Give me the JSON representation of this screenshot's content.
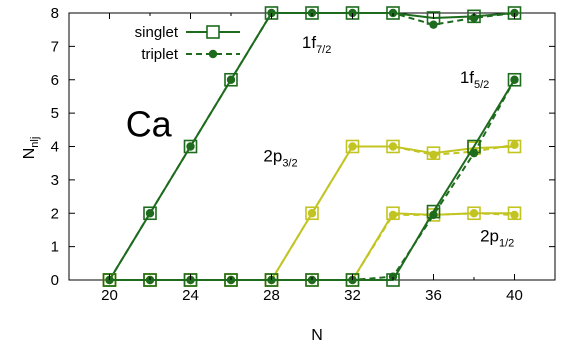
{
  "chart_data": {
    "type": "line",
    "xlabel": "N",
    "ylabel_main": "N",
    "ylabel_sub": "nlj",
    "xlim": [
      18,
      42
    ],
    "ylim": [
      0,
      8
    ],
    "xticks": [
      "20",
      "24",
      "28",
      "32",
      "36",
      "40"
    ],
    "yticks": [
      "0",
      "1",
      "2",
      "3",
      "4",
      "5",
      "6",
      "7",
      "8"
    ],
    "grid": false,
    "legend_position": "top-left",
    "legend": [
      {
        "label": "singlet",
        "style": "solid",
        "marker": "open-square"
      },
      {
        "label": "triplet",
        "style": "dashed",
        "marker": "filled-circle"
      }
    ],
    "x": [
      20,
      22,
      24,
      26,
      28,
      30,
      32,
      34,
      36,
      38,
      40
    ],
    "series": [
      {
        "orbital": "1f7/2",
        "kind": "singlet",
        "color": "#1e6b1e",
        "values": [
          0,
          2,
          4,
          6,
          8,
          8,
          8,
          8,
          7.85,
          7.9,
          8
        ]
      },
      {
        "orbital": "1f7/2",
        "kind": "triplet",
        "color": "#1e6b1e",
        "values": [
          0,
          2,
          4,
          6,
          8,
          8,
          8,
          8,
          7.65,
          7.85,
          8
        ]
      },
      {
        "orbital": "2p3/2",
        "kind": "singlet",
        "color": "#c2c422",
        "values": [
          0,
          0,
          0,
          0,
          0,
          2,
          4,
          4,
          3.8,
          3.95,
          4
        ]
      },
      {
        "orbital": "2p3/2",
        "kind": "triplet",
        "color": "#c2c422",
        "values": [
          0,
          0,
          0,
          0,
          0,
          2,
          4,
          4,
          3.75,
          3.85,
          4.05
        ]
      },
      {
        "orbital": "2p1/2",
        "kind": "singlet",
        "color": "#c2c422",
        "values": [
          0,
          0,
          0,
          0,
          0,
          0,
          0,
          2,
          1.95,
          2,
          2
        ]
      },
      {
        "orbital": "2p1/2",
        "kind": "triplet",
        "color": "#c2c422",
        "values": [
          0,
          0,
          0,
          0,
          0,
          0,
          0,
          1.95,
          1.95,
          2,
          1.95
        ]
      },
      {
        "orbital": "1f5/2",
        "kind": "singlet",
        "color": "#1e6b1e",
        "values": [
          0,
          0,
          0,
          0,
          0,
          0,
          0,
          0,
          2.05,
          4,
          6
        ]
      },
      {
        "orbital": "1f5/2",
        "kind": "triplet",
        "color": "#1e6b1e",
        "values": [
          0,
          0,
          0,
          0,
          0,
          0,
          0,
          0.1,
          1.95,
          3.8,
          6
        ]
      }
    ],
    "annotations": [
      {
        "main": "1f",
        "sub": "7/2",
        "x": 29.5,
        "y": 6.95
      },
      {
        "main": "1f",
        "sub": "5/2",
        "x": 37.3,
        "y": 5.9
      },
      {
        "main": "2p",
        "sub": "3/2",
        "x": 27.6,
        "y": 3.55
      },
      {
        "main": "2p",
        "sub": "1/2",
        "x": 38.3,
        "y": 1.15
      }
    ],
    "element_label": "Ca",
    "element_label_pos": {
      "x": 20.8,
      "y": 4.3
    }
  }
}
